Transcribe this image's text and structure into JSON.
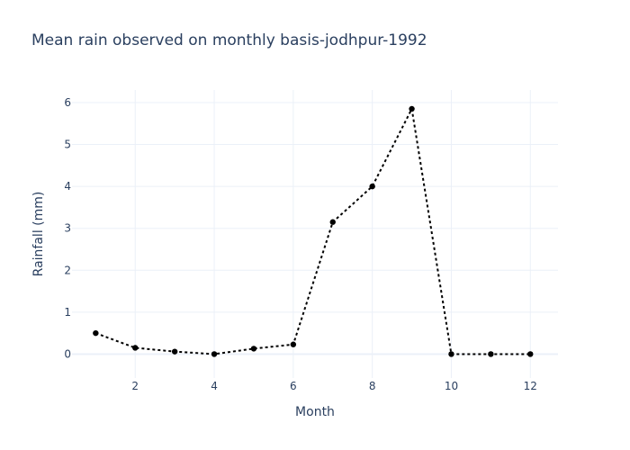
{
  "chart_data": {
    "type": "line",
    "title": "Mean rain observed on monthly basis-jodhpur-1992",
    "xlabel": "Month",
    "ylabel": "Rainfall (mm)",
    "xlim": [
      0.4,
      12.7
    ],
    "ylim": [
      -0.57,
      6.3
    ],
    "x_ticks": [
      2,
      4,
      6,
      8,
      10,
      12
    ],
    "y_ticks": [
      0,
      1,
      2,
      3,
      4,
      5,
      6
    ],
    "grid": true,
    "series": [
      {
        "mode": "lines+markers",
        "line_style": "dotted",
        "color": "#000000",
        "x": [
          1,
          2,
          3,
          4,
          5,
          6,
          7,
          8,
          9,
          10,
          11,
          12
        ],
        "y": [
          0.5,
          0.15,
          0.06,
          0.0,
          0.13,
          0.23,
          3.15,
          4.0,
          5.85,
          0.0,
          0.0,
          0.0
        ]
      }
    ]
  }
}
